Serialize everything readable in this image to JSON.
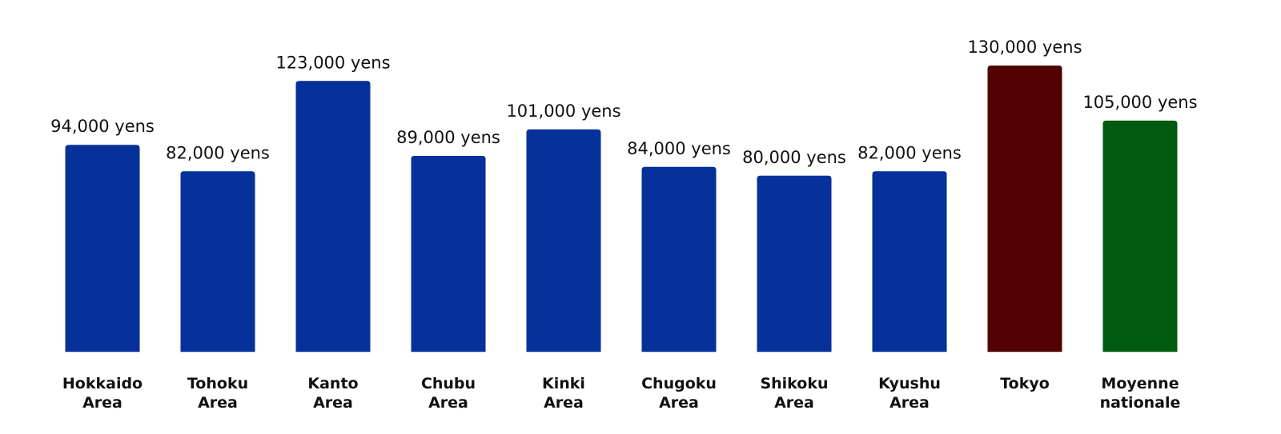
{
  "chart_data": {
    "type": "bar",
    "categories": [
      "Hokkaido Area",
      "Tohoku Area",
      "Kanto Area",
      "Chubu Area",
      "Kinki Area",
      "Chugoku Area",
      "Shikoku Area",
      "Kyushu Area",
      "Tokyo",
      "Moyenne nationale"
    ],
    "values": [
      94000,
      82000,
      123000,
      89000,
      101000,
      84000,
      80000,
      82000,
      130000,
      105000
    ],
    "value_labels": [
      "94,000 yens",
      "82,000 yens",
      "123,000 yens",
      "89,000 yens",
      "101,000 yens",
      "84,000 yens",
      "80,000 yens",
      "82,000 yens",
      "130,000 yens",
      "105,000 yens"
    ],
    "colors": [
      "#06319a",
      "#06319a",
      "#06319a",
      "#06319a",
      "#06319a",
      "#06319a",
      "#06319a",
      "#06319a",
      "#520000",
      "#005a10"
    ],
    "ylim": [
      -5000,
      130000
    ]
  }
}
